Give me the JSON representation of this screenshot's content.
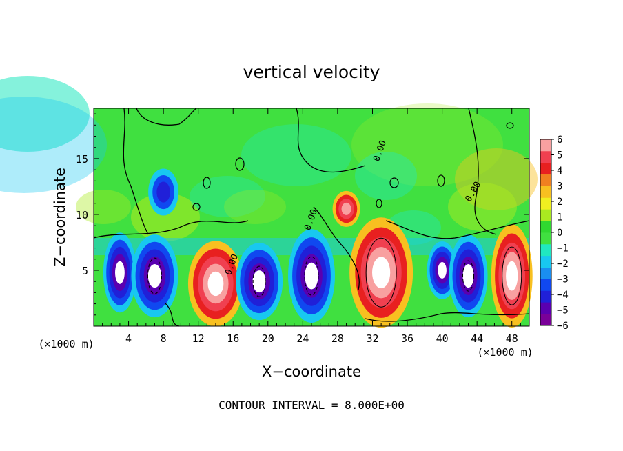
{
  "chart_data": {
    "type": "heatmap",
    "title": "vertical velocity",
    "xlabel": "X−coordinate",
    "ylabel": "Z−coordinate",
    "x_unit_left": "(×1000 m)",
    "x_unit_right": "(×1000 m)",
    "footer": "CONTOUR INTERVAL = 8.000E+00",
    "xlim": [
      0,
      50
    ],
    "ylim": [
      0,
      19.5
    ],
    "x_ticks": [
      4,
      8,
      12,
      16,
      20,
      24,
      28,
      32,
      36,
      40,
      44,
      48
    ],
    "y_ticks": [
      5,
      10,
      15
    ],
    "colorbar": {
      "range": [
        -6,
        6
      ],
      "ticks": [
        6,
        5,
        4,
        3,
        2,
        1,
        0,
        -1,
        -2,
        -3,
        -4,
        -5,
        -6
      ],
      "colors": [
        "#7a0099",
        "#5a00b0",
        "#2020d8",
        "#1048f0",
        "#1a8ef0",
        "#18c8f0",
        "#20e8c0",
        "#40e040",
        "#30d830",
        "#aaea20",
        "#f0f020",
        "#f8c020",
        "#f08020",
        "#e82020",
        "#f04050",
        "#f8a0a0"
      ]
    },
    "contour_labels": [
      "0.00",
      "0.00",
      "0.00",
      "0.00"
    ],
    "features": [
      {
        "kind": "downdraft",
        "x": 3,
        "z": 4.8,
        "w": -6
      },
      {
        "kind": "downdraft",
        "x": 7,
        "z": 4.5,
        "w": -6
      },
      {
        "kind": "updraft",
        "x": 14,
        "z": 3.8,
        "w": 6
      },
      {
        "kind": "downdraft",
        "x": 19,
        "z": 4.0,
        "w": -6
      },
      {
        "kind": "downdraft",
        "x": 25,
        "z": 4.5,
        "w": -6
      },
      {
        "kind": "updraft",
        "x": 33,
        "z": 4.8,
        "w": 6
      },
      {
        "kind": "downdraft",
        "x": 40,
        "z": 5.0,
        "w": -5
      },
      {
        "kind": "downdraft",
        "x": 43,
        "z": 4.5,
        "w": -6
      },
      {
        "kind": "updraft",
        "x": 48,
        "z": 4.5,
        "w": 6
      },
      {
        "kind": "updraft",
        "x": 29,
        "z": 10.5,
        "w": 4
      },
      {
        "kind": "downdraft",
        "x": 8,
        "z": 12,
        "w": -3
      }
    ]
  }
}
